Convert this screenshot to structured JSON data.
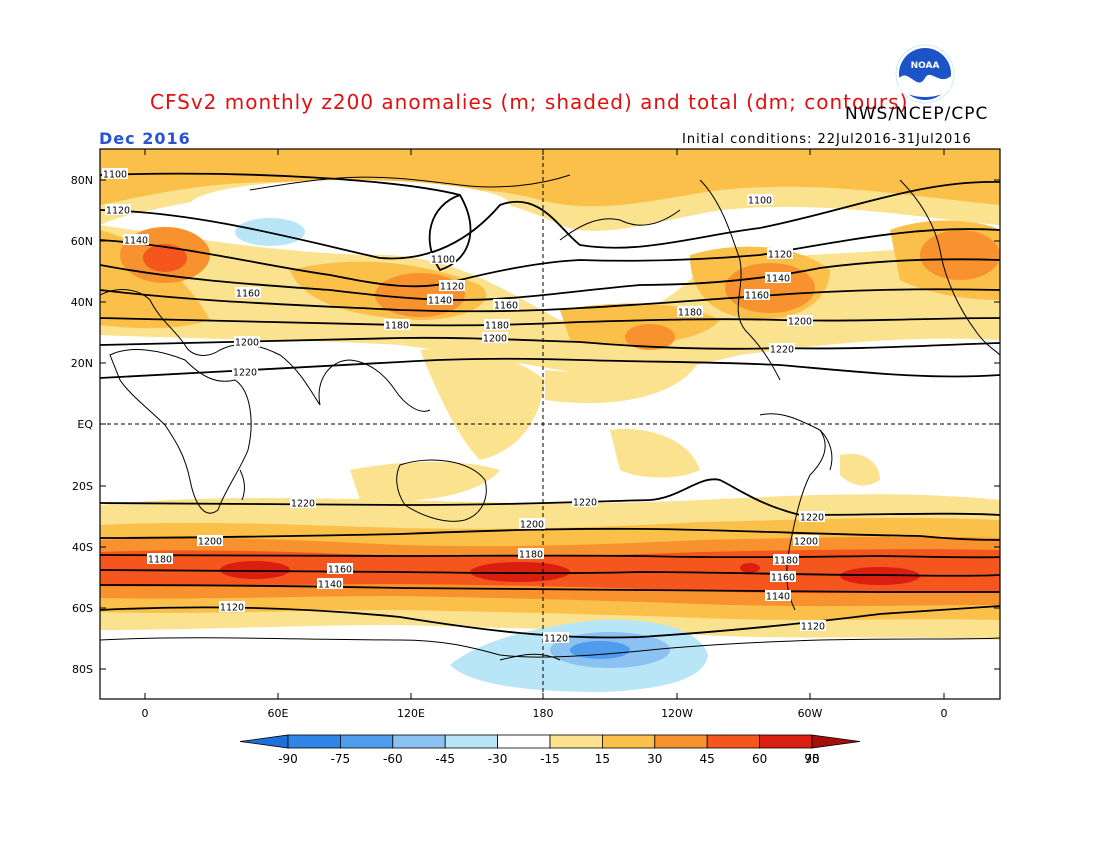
{
  "header": {
    "title": "CFSv2 monthly z200 anomalies (m; shaded) and total (dm; contours)",
    "agency": "NWS/NCEP/CPC",
    "month": "Dec 2016",
    "initial_conditions": "Initial conditions: 22Jul2016-31Jul2016",
    "logo_text": "NOAA"
  },
  "axes": {
    "lat_labels": [
      "80N",
      "60N",
      "40N",
      "20N",
      "EQ",
      "20S",
      "40S",
      "60S",
      "80S"
    ],
    "lon_labels": [
      "0",
      "60E",
      "120E",
      "180",
      "120W",
      "60W",
      "0"
    ]
  },
  "colorbar": {
    "labels": [
      "-90",
      "-75",
      "-60",
      "-45",
      "-30",
      "-15",
      "15",
      "30",
      "45",
      "60",
      "75",
      "90"
    ],
    "colors": [
      "#1f6fd8",
      "#2f86e6",
      "#4f9ced",
      "#8cc2f2",
      "#b8e6f6",
      "#ffffff",
      "#fbe28f",
      "#fbc04a",
      "#f8922e",
      "#f4561e",
      "#da1e10",
      "#a50f0a"
    ]
  },
  "contour_labels": {
    "nh": [
      "1100",
      "1120",
      "1140",
      "1160",
      "1180",
      "1200",
      "1220"
    ],
    "sh": [
      "1220",
      "1200",
      "1180",
      "1160",
      "1140",
      "1120"
    ]
  },
  "map_colors": {
    "land": "#000000",
    "contour": "#000000",
    "grid": "#000000"
  }
}
